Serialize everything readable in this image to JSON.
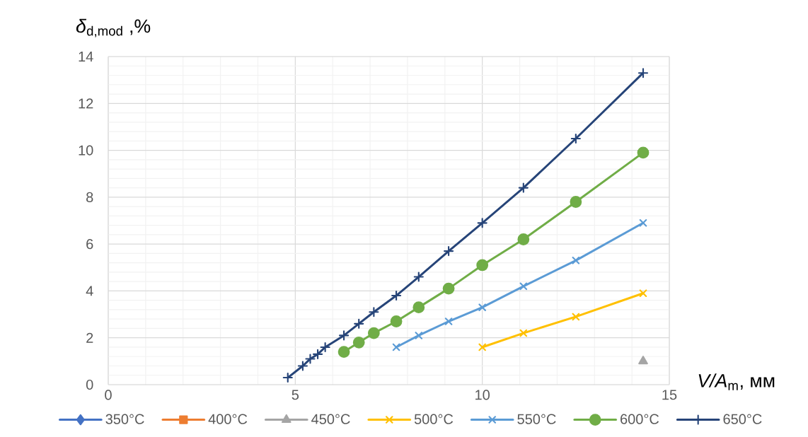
{
  "chart_data": {
    "type": "line",
    "xlabel": "*V/A*$_{m}$, мм",
    "ylabel": "*δ*$_{d,mod}$ ,%",
    "xlim": [
      0,
      15
    ],
    "ylim": [
      0,
      14
    ],
    "xticks": [
      0,
      {
        "value": 1,
        "label": null
      },
      {
        "value": 2,
        "label": null
      },
      {
        "value": 3,
        "label": null
      },
      {
        "value": 4,
        "label": null
      },
      5,
      {
        "value": 6,
        "label": null
      },
      {
        "value": 7,
        "label": null
      },
      {
        "value": 8,
        "label": null
      },
      {
        "value": 9,
        "label": null
      },
      10,
      {
        "value": 11,
        "label": null
      },
      {
        "value": 12,
        "label": null
      },
      {
        "value": 13,
        "label": null
      },
      {
        "value": 14,
        "label": null
      },
      15
    ],
    "yticks": [
      0,
      {
        "value": 0.4,
        "label": null
      },
      {
        "value": 0.8,
        "label": null
      },
      {
        "value": 1.2,
        "label": null
      },
      {
        "value": 1.6,
        "label": null
      },
      2,
      {
        "value": 2.4,
        "label": null
      },
      {
        "value": 2.8,
        "label": null
      },
      {
        "value": 3.2,
        "label": null
      },
      {
        "value": 3.6,
        "label": null
      },
      4,
      {
        "value": 4.4,
        "label": null
      },
      {
        "value": 4.8,
        "label": null
      },
      {
        "value": 5.2,
        "label": null
      },
      {
        "value": 5.6,
        "label": null
      },
      6,
      {
        "value": 6.4,
        "label": null
      },
      {
        "value": 6.8,
        "label": null
      },
      {
        "value": 7.2,
        "label": null
      },
      {
        "value": 7.6,
        "label": null
      },
      8,
      {
        "value": 8.4,
        "label": null
      },
      {
        "value": 8.8,
        "label": null
      },
      {
        "value": 9.2,
        "label": null
      },
      {
        "value": 9.6,
        "label": null
      },
      10,
      {
        "value": 10.4,
        "label": null
      },
      {
        "value": 10.8,
        "label": null
      },
      {
        "value": 11.2,
        "label": null
      },
      {
        "value": 11.6,
        "label": null
      },
      12,
      {
        "value": 12.4,
        "label": null
      },
      {
        "value": 12.8,
        "label": null
      },
      {
        "value": 13.2,
        "label": null
      },
      {
        "value": 13.6,
        "label": null
      },
      14
    ],
    "grid": true,
    "legend": "bottom",
    "series": [
      {
        "name": "350°C",
        "color": "#4472c4",
        "marker": "diamond"
      },
      {
        "name": "400°C",
        "color": "#ed7d31",
        "marker": "square"
      },
      {
        "name": "450°C",
        "color": "#a5a5a5",
        "marker": "triangle",
        "x": [
          14.3
        ],
        "values": [
          1.0
        ]
      },
      {
        "name": "500°C",
        "color": "#ffc000",
        "marker": "cross",
        "x": [
          10.0,
          11.1,
          12.5,
          14.3
        ],
        "values": [
          1.6,
          2.2,
          2.9,
          3.9
        ]
      },
      {
        "name": "550°C",
        "color": "#5b9bd5",
        "marker": "cross",
        "x": [
          7.7,
          8.3,
          9.1,
          10.0,
          11.1,
          12.5,
          14.3
        ],
        "values": [
          1.6,
          2.1,
          2.7,
          3.3,
          4.2,
          5.3,
          6.9
        ]
      },
      {
        "name": "600°C",
        "color": "#70ad47",
        "marker": "circle",
        "x": [
          6.3,
          6.7,
          7.1,
          7.7,
          8.3,
          9.1,
          10.0,
          11.1,
          12.5,
          14.3
        ],
        "values": [
          1.4,
          1.8,
          2.2,
          2.7,
          3.3,
          4.1,
          5.1,
          6.2,
          7.8,
          9.9
        ]
      },
      {
        "name": "650°C",
        "color": "#264478",
        "marker": "plus",
        "x": [
          4.8,
          5.2,
          5.4,
          5.6,
          5.8,
          6.3,
          6.7,
          7.1,
          7.7,
          8.3,
          9.1,
          10.0,
          11.1,
          12.5,
          14.3
        ],
        "values": [
          0.3,
          0.8,
          1.1,
          1.3,
          1.6,
          2.1,
          2.6,
          3.1,
          3.8,
          4.6,
          5.7,
          6.9,
          8.4,
          10.5,
          13.3
        ]
      }
    ]
  }
}
